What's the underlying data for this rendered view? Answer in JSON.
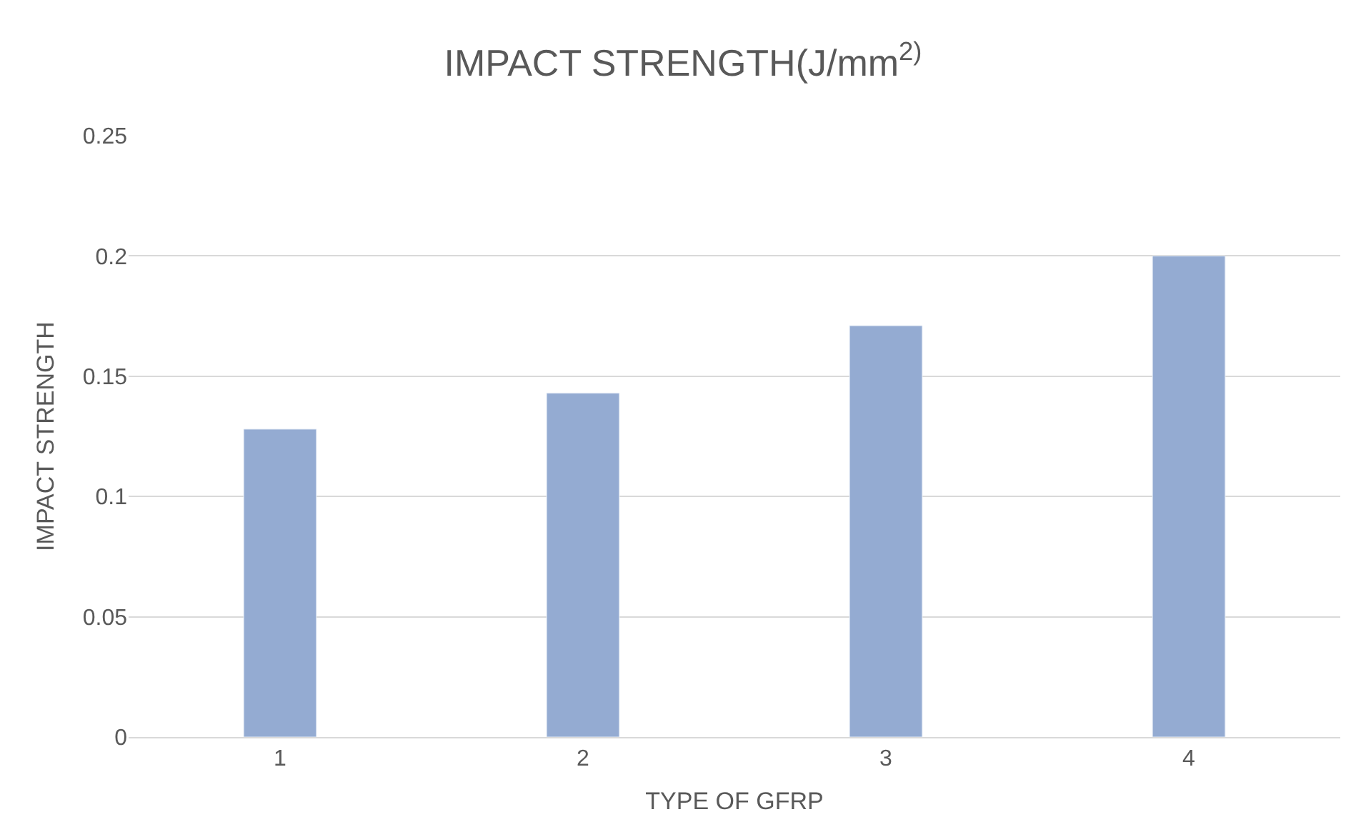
{
  "chart_data": {
    "type": "bar",
    "title": "IMPACT STRENGTH(J/mm$^{2)}$",
    "xlabel": "TYPE OF GFRP",
    "ylabel": "IMPACT STRENGTH",
    "categories": [
      "1",
      "2",
      "3",
      "4"
    ],
    "values": [
      0.128,
      0.143,
      0.171,
      0.2
    ],
    "color": "#94abd2",
    "ylim": [
      0,
      0.25
    ],
    "yticks": [
      0,
      0.05,
      0.1,
      0.15,
      0.2,
      0.25
    ],
    "grid": "y",
    "legend": false
  }
}
